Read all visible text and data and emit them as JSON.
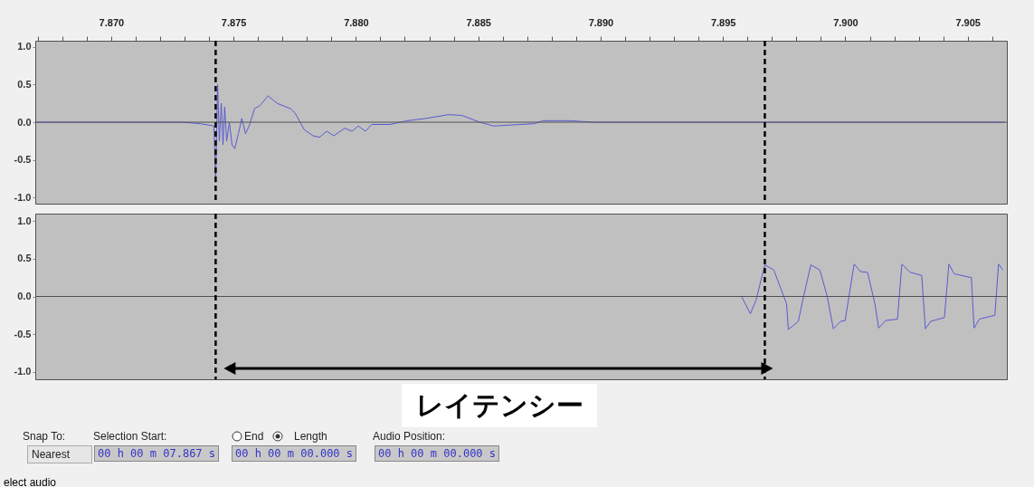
{
  "chart_data": [
    {
      "type": "line",
      "xlim": [
        7.8669,
        7.9066
      ],
      "ylim": [
        -1.08,
        1.08
      ],
      "xticks": [
        {
          "value": 7.867,
          "label": null
        },
        {
          "value": 7.868,
          "label": null
        },
        {
          "value": 7.869,
          "label": null
        },
        {
          "value": 7.87,
          "label": "7.870"
        },
        {
          "value": 7.871,
          "label": null
        },
        {
          "value": 7.872,
          "label": null
        },
        {
          "value": 7.873,
          "label": null
        },
        {
          "value": 7.874,
          "label": null
        },
        {
          "value": 7.875,
          "label": "7.875"
        },
        {
          "value": 7.876,
          "label": null
        },
        {
          "value": 7.877,
          "label": null
        },
        {
          "value": 7.878,
          "label": null
        },
        {
          "value": 7.879,
          "label": null
        },
        {
          "value": 7.88,
          "label": "7.880"
        },
        {
          "value": 7.881,
          "label": null
        },
        {
          "value": 7.882,
          "label": null
        },
        {
          "value": 7.883,
          "label": null
        },
        {
          "value": 7.884,
          "label": null
        },
        {
          "value": 7.885,
          "label": "7.885"
        },
        {
          "value": 7.886,
          "label": null
        },
        {
          "value": 7.887,
          "label": null
        },
        {
          "value": 7.888,
          "label": null
        },
        {
          "value": 7.889,
          "label": null
        },
        {
          "value": 7.89,
          "label": "7.890"
        },
        {
          "value": 7.891,
          "label": null
        },
        {
          "value": 7.892,
          "label": null
        },
        {
          "value": 7.893,
          "label": null
        },
        {
          "value": 7.894,
          "label": null
        },
        {
          "value": 7.895,
          "label": "7.895"
        },
        {
          "value": 7.896,
          "label": null
        },
        {
          "value": 7.897,
          "label": null
        },
        {
          "value": 7.898,
          "label": null
        },
        {
          "value": 7.899,
          "label": null
        },
        {
          "value": 7.9,
          "label": "7.900"
        },
        {
          "value": 7.901,
          "label": null
        },
        {
          "value": 7.902,
          "label": null
        },
        {
          "value": 7.903,
          "label": null
        },
        {
          "value": 7.904,
          "label": null
        },
        {
          "value": 7.905,
          "label": "7.905"
        },
        {
          "value": 7.906,
          "label": null
        }
      ],
      "yticks": [
        {
          "value": 1,
          "label": "1.0"
        },
        {
          "value": 0.5,
          "label": "0.5"
        },
        {
          "value": 0,
          "label": "0.0"
        },
        {
          "value": -0.5,
          "label": "-0.5"
        },
        {
          "value": -1,
          "label": "-1.0"
        }
      ],
      "series": [
        {
          "color": "#5a5ad2",
          "x": [
            7.86694,
            7.87291,
            7.87365,
            7.8742,
            7.87427,
            7.87435,
            7.87442,
            7.8745,
            7.87457,
            7.87464,
            7.87472,
            7.87483,
            7.87494,
            7.87505,
            7.8752,
            7.87534,
            7.87549,
            7.87564,
            7.87586,
            7.87608,
            7.87641,
            7.87678,
            7.87733,
            7.87752,
            7.87789,
            7.87825,
            7.87851,
            7.87881,
            7.8791,
            7.87954,
            7.87984,
            7.8801,
            7.88039,
            7.88065,
            7.88139,
            7.88212,
            7.88286,
            7.88378,
            7.88433,
            7.88507,
            7.88562,
            7.88618,
            7.88728,
            7.88765,
            7.88875,
            7.88968,
            7.90651
          ],
          "values": [
            0,
            0,
            -0.02,
            -0.05,
            -0.8,
            0.5,
            -0.25,
            0.25,
            -0.3,
            0.2,
            -0.25,
            0,
            -0.3,
            -0.35,
            -0.15,
            0.05,
            -0.15,
            -0.05,
            0.18,
            0.22,
            0.35,
            0.25,
            0.18,
            0.12,
            -0.1,
            -0.18,
            -0.2,
            -0.12,
            -0.18,
            -0.08,
            -0.12,
            -0.05,
            -0.12,
            -0.03,
            -0.03,
            0.02,
            0.05,
            0.1,
            0.09,
            0,
            -0.05,
            -0.04,
            -0.02,
            0.02,
            0.02,
            0,
            0
          ]
        }
      ],
      "ref_lines": [
        {
          "axis": "y",
          "value": 0,
          "color": "#505050",
          "line_style": "solid"
        },
        {
          "axis": "x",
          "value": 7.87427,
          "color": "#000000",
          "line_style": "dashed"
        },
        {
          "axis": "x",
          "value": 7.89671,
          "color": "#000000",
          "line_style": "dashed"
        }
      ],
      "line_style": "solid",
      "marker": "none",
      "legend": false,
      "grid": false
    },
    {
      "type": "line",
      "xlim": [
        7.8669,
        7.9066
      ],
      "ylim": [
        -1.1,
        1.1
      ],
      "tick_labels": "y",
      "yticks": [
        {
          "value": 1,
          "label": "1.0"
        },
        {
          "value": 0.5,
          "label": "0.5"
        },
        {
          "value": 0,
          "label": "0.0"
        },
        {
          "value": -0.5,
          "label": "-0.5"
        },
        {
          "value": -1,
          "label": "-1.0"
        }
      ],
      "series": [
        {
          "color": "#5a5ad2",
          "x": [
            7.86694,
            7.89576,
            7.89612,
            7.89635,
            7.89671,
            7.89708,
            7.8976,
            7.89767,
            7.89808,
            7.89826,
            7.89859,
            7.89896,
            7.89926,
            7.89951,
            7.89981,
            7.89999,
            7.90036,
            7.90062,
            7.90091,
            7.90121,
            7.90136,
            7.90165,
            7.90213,
            7.90231,
            7.90265,
            7.90312,
            7.90327,
            7.90349,
            7.90405,
            7.90423,
            7.90445,
            7.90515,
            7.90526,
            7.90548,
            7.90611,
            7.90626,
            7.90644
          ],
          "values": [
            0,
            0,
            -0.23,
            -0.05,
            0.42,
            0.35,
            -0.1,
            -0.44,
            -0.33,
            -0.05,
            0.42,
            0.35,
            0,
            -0.43,
            -0.33,
            -0.32,
            0.43,
            0.33,
            0.32,
            -0.1,
            -0.42,
            -0.32,
            -0.3,
            0.43,
            0.32,
            0.28,
            -0.43,
            -0.33,
            -0.28,
            0.43,
            0.3,
            0.25,
            -0.42,
            -0.3,
            -0.25,
            0.43,
            0.35
          ]
        }
      ],
      "ref_lines": [
        {
          "axis": "y",
          "value": 0,
          "color": "#505050",
          "line_style": "solid"
        },
        {
          "axis": "x",
          "value": 7.87427,
          "color": "#000000",
          "line_style": "dashed"
        },
        {
          "axis": "x",
          "value": 7.89671,
          "color": "#000000",
          "line_style": "dashed"
        }
      ],
      "annotations": [
        "レイテンシー",
        "Snap To:",
        "Nearest",
        "Selection Start:",
        "End",
        "Length",
        "Audio Position:",
        "00 h 00 m 07.867 s",
        "00 h 00 m 00.000 s",
        "00 h 00 m 00.000 s",
        "elect audio"
      ],
      "line_style": "solid",
      "marker": "none",
      "legend": false,
      "grid": false
    }
  ]
}
